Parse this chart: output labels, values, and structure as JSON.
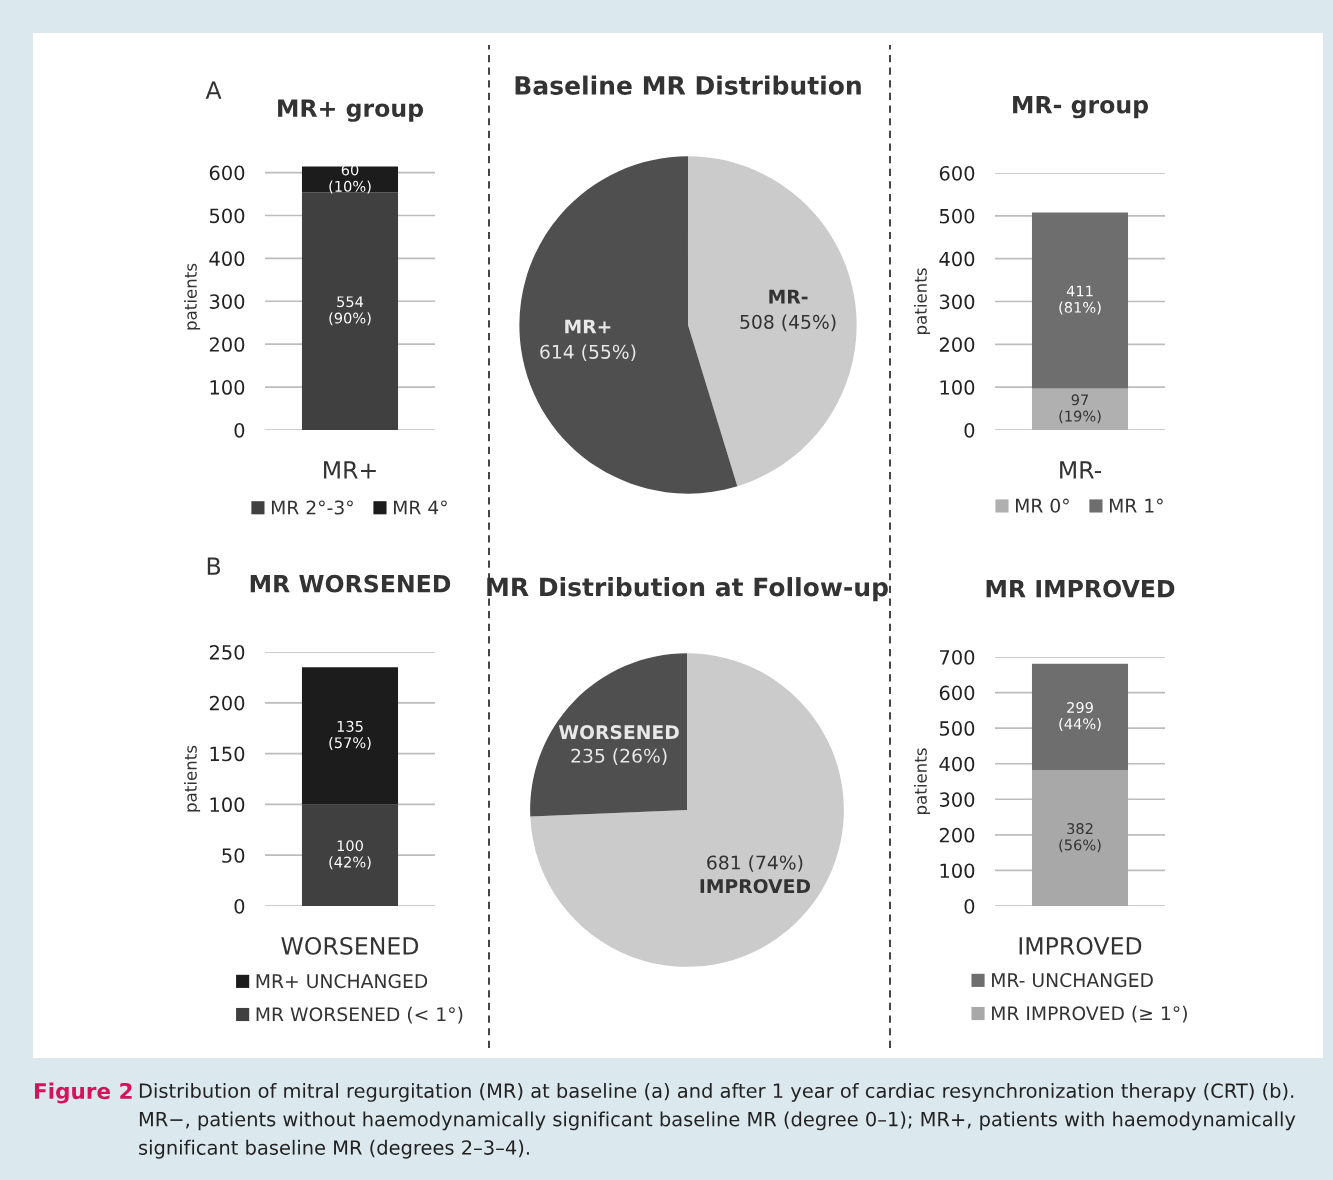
{
  "chart_data": [
    {
      "type": "bar",
      "title": "MR+ group",
      "ylabel": "patients",
      "categories": [
        "MR+"
      ],
      "stacked": true,
      "ylim": [
        0,
        620
      ],
      "yticks": [
        0,
        100,
        200,
        300,
        400,
        500,
        600
      ],
      "grid": "y",
      "legend": "bottom",
      "annotations": [
        "A"
      ],
      "series": [
        {
          "name": "MR 2°-3°",
          "color": "#404040",
          "values": [
            554
          ],
          "value_labels": [
            "554\n(90%)"
          ]
        },
        {
          "name": "MR 4°",
          "color": "#1c1c1c",
          "values": [
            60
          ],
          "value_labels": [
            "60\n(10%)"
          ]
        }
      ]
    },
    {
      "type": "pie",
      "title": "Baseline MR Distribution",
      "categories": [
        "MR-",
        "MR+"
      ],
      "values": [
        508,
        614
      ],
      "colors": [
        "#cbcbcb",
        "#4f4f4f"
      ],
      "value_labels": [
        "508 (45%)",
        "614 (55%)"
      ]
    },
    {
      "type": "bar",
      "title": "MR- group",
      "ylabel": "patients",
      "categories": [
        "MR-"
      ],
      "stacked": true,
      "ylim": [
        0,
        600
      ],
      "yticks": [
        0,
        100,
        200,
        300,
        400,
        500,
        600
      ],
      "grid": "y",
      "legend": "bottom",
      "series": [
        {
          "name": "MR 0°",
          "color": "#b0b0b0",
          "values": [
            97
          ],
          "value_labels": [
            "97\n(19%)"
          ]
        },
        {
          "name": "MR 1°",
          "color": "#6e6e6e",
          "values": [
            411
          ],
          "value_labels": [
            "411\n(81%)"
          ]
        }
      ]
    },
    {
      "type": "bar",
      "title": "MR WORSENED",
      "ylabel": "patients",
      "categories": [
        "WORSENED"
      ],
      "stacked": true,
      "ylim": [
        0,
        250
      ],
      "yticks": [
        0,
        50,
        100,
        150,
        200,
        250
      ],
      "grid": "y",
      "legend": "bottom",
      "annotations": [
        "B"
      ],
      "series": [
        {
          "name": "MR WORSENED (< 1°)",
          "color": "#404040",
          "values": [
            100
          ],
          "value_labels": [
            "100\n(42%)"
          ]
        },
        {
          "name": "MR+ UNCHANGED",
          "color": "#1c1c1c",
          "values": [
            135
          ],
          "value_labels": [
            "135\n(57%)"
          ]
        }
      ]
    },
    {
      "type": "pie",
      "title": "MR Distribution at Follow-up",
      "categories": [
        "IMPROVED",
        "WORSENED"
      ],
      "values": [
        681,
        235
      ],
      "colors": [
        "#cbcbcb",
        "#4f4f4f"
      ],
      "value_labels": [
        "681 (74%)",
        "235 (26%)"
      ]
    },
    {
      "type": "bar",
      "title": "MR IMPROVED",
      "ylabel": "patients",
      "categories": [
        "IMPROVED"
      ],
      "stacked": true,
      "ylim": [
        0,
        700
      ],
      "yticks": [
        0,
        100,
        200,
        300,
        400,
        500,
        600,
        700
      ],
      "grid": "y",
      "legend": "bottom",
      "annotations": [
        "Figure 2",
        "Distribution of mitral regurgitation (MR) at baseline (a) and after 1 year of cardiac resynchronization therapy (CRT) (b). MR−, patients without haemodynamically significant baseline MR (degree 0–1); MR+, patients with haemodynamically significant baseline MR (degrees 2–3–4)."
      ],
      "series": [
        {
          "name": "MR IMPROVED (≥ 1°)",
          "color": "#a8a8a8",
          "values": [
            382
          ],
          "value_labels": [
            "382\n(56%)"
          ]
        },
        {
          "name": "MR- UNCHANGED",
          "color": "#6e6e6e",
          "values": [
            299
          ],
          "value_labels": [
            "299\n(44%)"
          ]
        }
      ]
    }
  ]
}
